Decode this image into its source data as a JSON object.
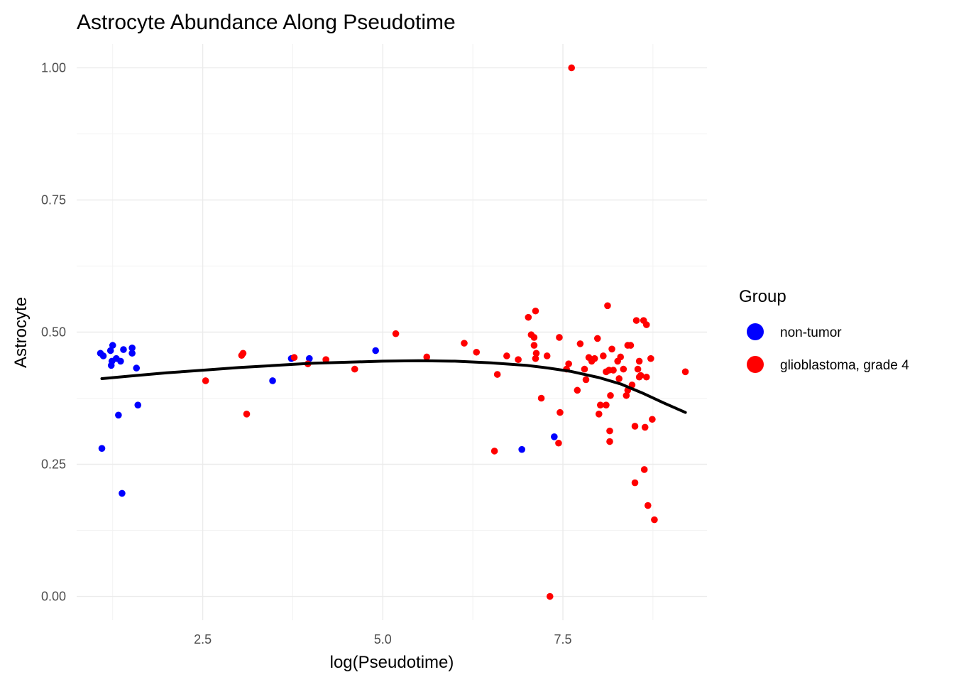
{
  "chart_data": {
    "type": "scatter",
    "title": "Astrocyte Abundance Along Pseudotime",
    "xlabel": "log(Pseudotime)",
    "ylabel": "Astrocyte",
    "xlim": [
      0.75,
      9.5
    ],
    "ylim": [
      -0.045,
      1.045
    ],
    "x_ticks": [
      2.5,
      5.0,
      7.5
    ],
    "x_tick_labels": [
      "2.5",
      "5.0",
      "7.5"
    ],
    "y_ticks": [
      0.0,
      0.25,
      0.5,
      0.75,
      1.0
    ],
    "y_tick_labels": [
      "0.00",
      "0.25",
      "0.50",
      "0.75",
      "1.00"
    ],
    "grid": true,
    "legend": {
      "title": "Group",
      "position": "right",
      "entries": [
        {
          "label": "non-tumor",
          "color": "#0000ff"
        },
        {
          "label": "glioblastoma, grade 4",
          "color": "#ff0000"
        }
      ]
    },
    "series": [
      {
        "name": "non-tumor",
        "color": "#0000ff",
        "points": [
          [
            1.08,
            0.46
          ],
          [
            1.12,
            0.455
          ],
          [
            1.22,
            0.465
          ],
          [
            1.25,
            0.475
          ],
          [
            1.24,
            0.445
          ],
          [
            1.23,
            0.437
          ],
          [
            1.3,
            0.45
          ],
          [
            1.36,
            0.445
          ],
          [
            1.4,
            0.467
          ],
          [
            1.52,
            0.47
          ],
          [
            1.52,
            0.46
          ],
          [
            1.58,
            0.432
          ],
          [
            1.1,
            0.28
          ],
          [
            1.33,
            0.343
          ],
          [
            1.6,
            0.362
          ],
          [
            1.38,
            0.195
          ],
          [
            3.47,
            0.408
          ],
          [
            3.73,
            0.45
          ],
          [
            3.98,
            0.45
          ],
          [
            4.9,
            0.465
          ],
          [
            6.93,
            0.278
          ],
          [
            7.38,
            0.302
          ]
        ]
      },
      {
        "name": "glioblastoma, grade 4",
        "color": "#ff0000",
        "points": [
          [
            2.54,
            0.408
          ],
          [
            3.04,
            0.456
          ],
          [
            3.06,
            0.46
          ],
          [
            3.11,
            0.345
          ],
          [
            3.77,
            0.452
          ],
          [
            3.96,
            0.44
          ],
          [
            4.21,
            0.448
          ],
          [
            4.61,
            0.43
          ],
          [
            5.18,
            0.497
          ],
          [
            5.61,
            0.453
          ],
          [
            6.13,
            0.479
          ],
          [
            6.3,
            0.462
          ],
          [
            6.55,
            0.275
          ],
          [
            6.59,
            0.42
          ],
          [
            6.72,
            0.455
          ],
          [
            6.88,
            0.448
          ],
          [
            7.02,
            0.528
          ],
          [
            7.06,
            0.495
          ],
          [
            7.1,
            0.49
          ],
          [
            7.12,
            0.54
          ],
          [
            7.1,
            0.475
          ],
          [
            7.13,
            0.46
          ],
          [
            7.12,
            0.45
          ],
          [
            7.2,
            0.375
          ],
          [
            7.28,
            0.455
          ],
          [
            7.32,
            0.0
          ],
          [
            7.45,
            0.49
          ],
          [
            7.46,
            0.348
          ],
          [
            7.44,
            0.29
          ],
          [
            7.55,
            0.43
          ],
          [
            7.58,
            0.44
          ],
          [
            7.62,
            1.0
          ],
          [
            7.7,
            0.39
          ],
          [
            7.74,
            0.478
          ],
          [
            7.8,
            0.43
          ],
          [
            7.82,
            0.41
          ],
          [
            7.86,
            0.452
          ],
          [
            7.9,
            0.445
          ],
          [
            7.94,
            0.45
          ],
          [
            7.98,
            0.488
          ],
          [
            8.0,
            0.345
          ],
          [
            8.02,
            0.362
          ],
          [
            8.06,
            0.455
          ],
          [
            8.1,
            0.362
          ],
          [
            8.1,
            0.425
          ],
          [
            8.12,
            0.55
          ],
          [
            8.14,
            0.428
          ],
          [
            8.15,
            0.313
          ],
          [
            8.15,
            0.293
          ],
          [
            8.16,
            0.38
          ],
          [
            8.18,
            0.468
          ],
          [
            8.2,
            0.428
          ],
          [
            8.26,
            0.445
          ],
          [
            8.28,
            0.412
          ],
          [
            8.3,
            0.453
          ],
          [
            8.34,
            0.43
          ],
          [
            8.38,
            0.38
          ],
          [
            8.4,
            0.475
          ],
          [
            8.4,
            0.39
          ],
          [
            8.44,
            0.475
          ],
          [
            8.46,
            0.4
          ],
          [
            8.5,
            0.322
          ],
          [
            8.5,
            0.215
          ],
          [
            8.52,
            0.522
          ],
          [
            8.54,
            0.43
          ],
          [
            8.56,
            0.445
          ],
          [
            8.56,
            0.415
          ],
          [
            8.58,
            0.418
          ],
          [
            8.62,
            0.522
          ],
          [
            8.63,
            0.24
          ],
          [
            8.64,
            0.32
          ],
          [
            8.66,
            0.514
          ],
          [
            8.66,
            0.415
          ],
          [
            8.68,
            0.172
          ],
          [
            8.72,
            0.45
          ],
          [
            8.74,
            0.335
          ],
          [
            8.77,
            0.145
          ],
          [
            9.2,
            0.425
          ]
        ]
      }
    ],
    "smooth": {
      "color": "#000000",
      "points": [
        [
          1.1,
          0.412
        ],
        [
          1.5,
          0.417
        ],
        [
          2.0,
          0.423
        ],
        [
          2.5,
          0.428
        ],
        [
          3.0,
          0.433
        ],
        [
          3.5,
          0.437
        ],
        [
          4.0,
          0.441
        ],
        [
          4.5,
          0.443
        ],
        [
          5.0,
          0.445
        ],
        [
          5.5,
          0.446
        ],
        [
          6.0,
          0.445
        ],
        [
          6.5,
          0.442
        ],
        [
          7.0,
          0.437
        ],
        [
          7.3,
          0.432
        ],
        [
          7.6,
          0.426
        ],
        [
          8.0,
          0.414
        ],
        [
          8.3,
          0.402
        ],
        [
          8.6,
          0.385
        ],
        [
          8.9,
          0.366
        ],
        [
          9.2,
          0.348
        ]
      ]
    }
  }
}
